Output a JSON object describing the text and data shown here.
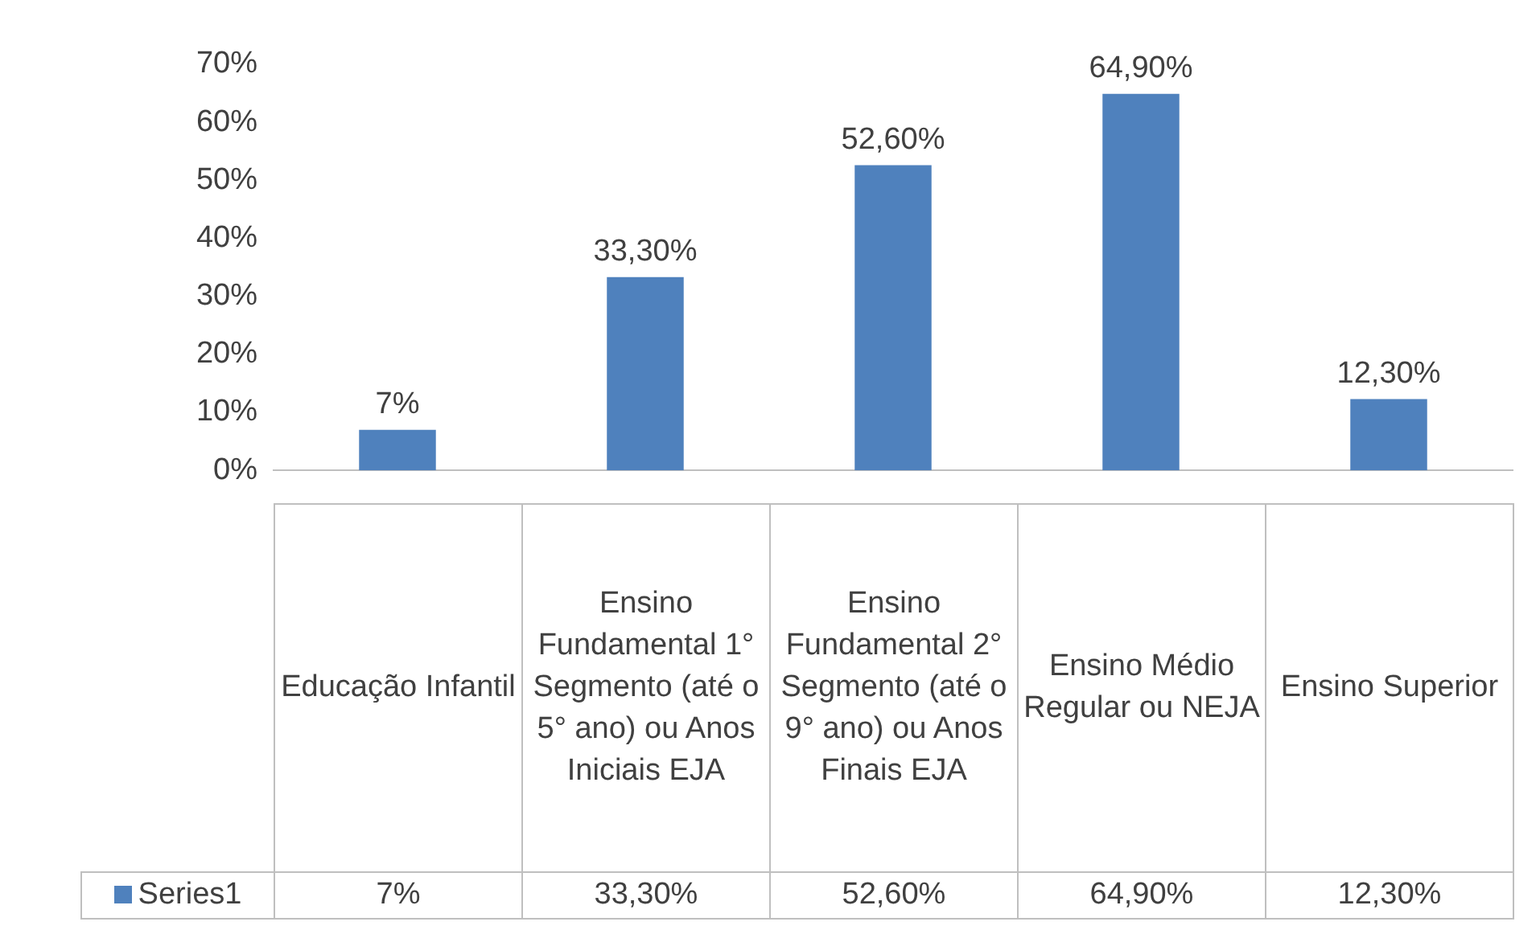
{
  "chart_data": {
    "type": "bar",
    "categories": [
      "Educação Infantil",
      "Ensino Fundamental 1° Segmento (até o 5° ano) ou Anos Iniciais EJA",
      "Ensino Fundamental 2° Segmento (até o 9° ano) ou Anos Finais EJA",
      "Ensino Médio Regular ou NEJA",
      "Ensino Superior"
    ],
    "series": [
      {
        "name": "Series1",
        "color": "#4f81bd",
        "values": [
          7,
          33.3,
          52.6,
          64.9,
          12.3
        ],
        "value_labels": [
          "7%",
          "33,30%",
          "52,60%",
          "64,90%",
          "12,30%"
        ]
      }
    ],
    "ylim": [
      0,
      70
    ],
    "yticks": [
      {
        "value": 0,
        "label": "0%"
      },
      {
        "value": 10,
        "label": "10%"
      },
      {
        "value": 20,
        "label": "20%"
      },
      {
        "value": 30,
        "label": "30%"
      },
      {
        "value": 40,
        "label": "40%"
      },
      {
        "value": 50,
        "label": "50%"
      },
      {
        "value": 60,
        "label": "60%"
      },
      {
        "value": 70,
        "label": "70%"
      }
    ],
    "grid": false,
    "legend": "bottom"
  }
}
